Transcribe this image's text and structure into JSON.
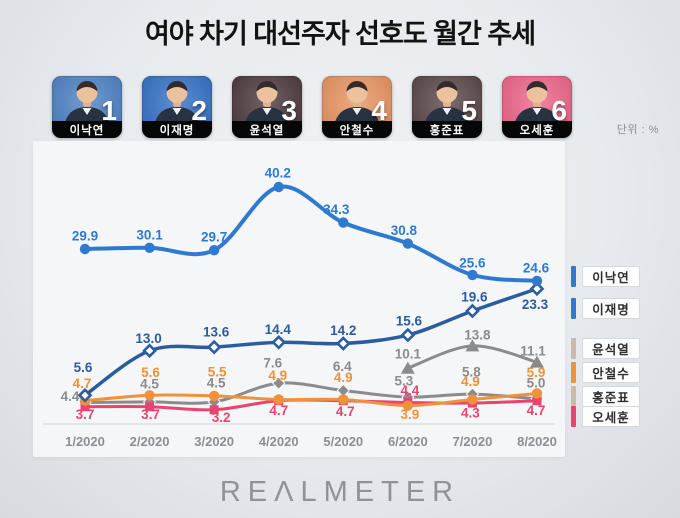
{
  "page": {
    "title": "여야 차기 대선주자 선호도 월간 추세",
    "unit_label": "단위 : %",
    "footer_logo": "REΛLMETER"
  },
  "candidates": [
    {
      "id": "lee-nak-yeon",
      "rank": "1",
      "name": "이낙연",
      "color": "#4a7fc4"
    },
    {
      "id": "lee-jae-myung",
      "rank": "2",
      "name": "이재명",
      "color": "#2f6ec6"
    },
    {
      "id": "yoon-seok-youl",
      "rank": "3",
      "name": "윤석열",
      "color": "#493539"
    },
    {
      "id": "ahn-cheol-soo",
      "rank": "4",
      "name": "안철수",
      "color": "#e9925e"
    },
    {
      "id": "hong-jun-pyo",
      "rank": "5",
      "name": "홍준표",
      "color": "#564344"
    },
    {
      "id": "oh-se-hoon",
      "rank": "6",
      "name": "오세훈",
      "color": "#ee6187"
    }
  ],
  "chart_data": {
    "type": "line",
    "title": "여야 차기 대선주자 선호도 월간 추세",
    "unit": "%",
    "x": [
      "1/2020",
      "2/2020",
      "3/2020",
      "4/2020",
      "5/2020",
      "6/2020",
      "7/2020",
      "8/2020"
    ],
    "ylim": [
      0,
      47
    ],
    "grid": false,
    "legend_position": "right",
    "series": [
      {
        "id": "lee-nak-yeon",
        "name": "이낙연",
        "color": "#2f7ad0",
        "legend_color": "#2f7ad0",
        "marker": "circle",
        "values": [
          29.9,
          30.1,
          29.7,
          40.2,
          34.3,
          30.8,
          25.6,
          24.6
        ],
        "label_offsets": [
          [
            0,
            -13
          ],
          [
            0,
            -13
          ],
          [
            0,
            -13
          ],
          [
            -1,
            -14
          ],
          [
            -7,
            -13
          ],
          [
            -4,
            -13
          ],
          [
            0,
            -12
          ],
          [
            -1,
            -13
          ]
        ]
      },
      {
        "id": "lee-jae-myung",
        "name": "이재명",
        "color": "#2b5c9e",
        "legend_color": "#2f7ad0",
        "marker": "diamond-open",
        "values": [
          5.6,
          13.0,
          13.6,
          14.4,
          14.2,
          15.6,
          19.6,
          23.3
        ],
        "label_offsets": [
          [
            -2,
            -28
          ],
          [
            -1,
            -12
          ],
          [
            2,
            -15
          ],
          [
            -1,
            -13
          ],
          [
            0,
            -13
          ],
          [
            1,
            -14
          ],
          [
            2,
            -14
          ],
          [
            -2,
            16
          ]
        ]
      },
      {
        "id": "yoon-seok-youl",
        "name": "윤석열",
        "color": "#8b8b8b",
        "legend_color": "#cbbaa9",
        "marker": "triangle",
        "values": [
          null,
          null,
          null,
          null,
          null,
          10.1,
          13.8,
          11.1
        ],
        "label_offsets": [
          null,
          null,
          null,
          null,
          null,
          [
            0,
            -14
          ],
          [
            5,
            -11
          ],
          [
            -4,
            -11
          ]
        ]
      },
      {
        "id": "ahn-cheol-soo",
        "name": "안철수",
        "color": "#f0913c",
        "legend_color": "#f0913c",
        "marker": "circle",
        "values": [
          4.7,
          5.6,
          5.5,
          4.9,
          4.9,
          3.9,
          4.9,
          5.9
        ],
        "label_offsets": [
          [
            -3,
            -17
          ],
          [
            1,
            -23
          ],
          [
            3,
            -24
          ],
          [
            -1,
            -24
          ],
          [
            0,
            -22
          ],
          [
            2,
            9
          ],
          [
            -2,
            -18
          ],
          [
            -1,
            -21
          ]
        ]
      },
      {
        "id": "hong-jun-pyo",
        "name": "홍준표",
        "color": "#8b8b8b",
        "legend_color": "#cbbaa9",
        "marker": "diamond",
        "values": [
          4.4,
          4.5,
          4.5,
          7.6,
          6.4,
          5.3,
          5.8,
          5.0
        ],
        "label_offsets": [
          [
            -15,
            -6
          ],
          [
            0,
            -18
          ],
          [
            2,
            -19
          ],
          [
            -6,
            -20
          ],
          [
            -1,
            -24
          ],
          [
            -4,
            -16
          ],
          [
            -1,
            -22
          ],
          [
            -1,
            -16
          ]
        ]
      },
      {
        "id": "oh-se-hoon",
        "name": "오세훈",
        "color": "#e9446f",
        "legend_color": "#e9446f",
        "marker": "square",
        "values": [
          3.7,
          3.7,
          3.2,
          4.7,
          4.7,
          4.4,
          4.3,
          4.7
        ],
        "label_offsets": [
          [
            0,
            8
          ],
          [
            1,
            8
          ],
          [
            7,
            8
          ],
          [
            0,
            10
          ],
          [
            2,
            11
          ],
          [
            2,
            -12
          ],
          [
            -2,
            10
          ],
          [
            -1,
            10
          ]
        ]
      }
    ]
  }
}
